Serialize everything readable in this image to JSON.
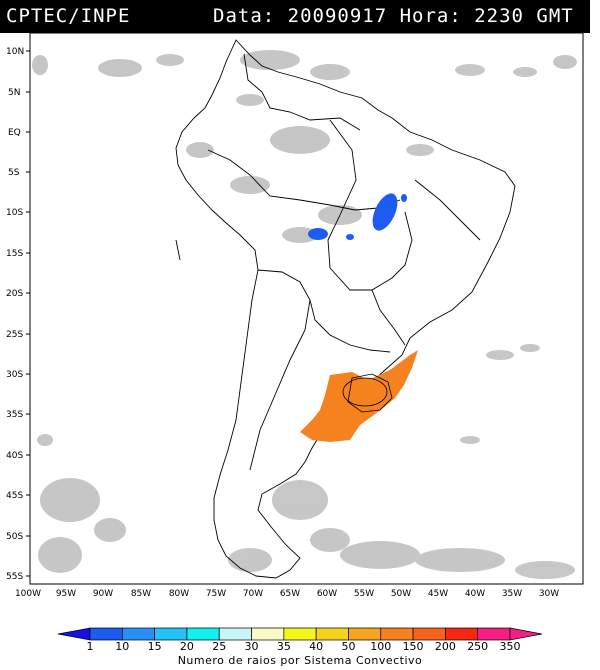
{
  "header": {
    "organization": "CPTEC/INPE",
    "datetime": "Data: 20090917  Hora: 2230 GMT"
  },
  "lat_labels": [
    "10N",
    "5N",
    "EQ",
    "5S",
    "10S",
    "15S",
    "20S",
    "25S",
    "30S",
    "35S",
    "40S",
    "45S",
    "50S",
    "55S"
  ],
  "lon_labels": [
    "100W",
    "95W",
    "90W",
    "85W",
    "80W",
    "75W",
    "70W",
    "65W",
    "60W",
    "55W",
    "50W",
    "45W",
    "40W",
    "35W",
    "30W"
  ],
  "legend": {
    "title": "Numero de raios por Sistema Convectivo",
    "values": [
      "1",
      "10",
      "15",
      "20",
      "25",
      "30",
      "35",
      "40",
      "50",
      "100",
      "150",
      "200",
      "250",
      "350"
    ],
    "colors": [
      "#1212e8",
      "#1c5cf0",
      "#2a8ff5",
      "#23c3f5",
      "#13f0f0",
      "#c8f5f5",
      "#fafac8",
      "#f5f51e",
      "#f5d21e",
      "#f5a51e",
      "#f5821e",
      "#f5641e",
      "#f52814",
      "#f51e82"
    ]
  },
  "lightning_clusters": [
    {
      "region": "north-central Brazil",
      "color": "#1c5cf0"
    },
    {
      "region": "Bolivia/Mato Grosso border",
      "color": "#1c5cf0"
    },
    {
      "region": "southern Brazil / Uruguay / NE Argentina",
      "color": "#f5821e"
    }
  ]
}
